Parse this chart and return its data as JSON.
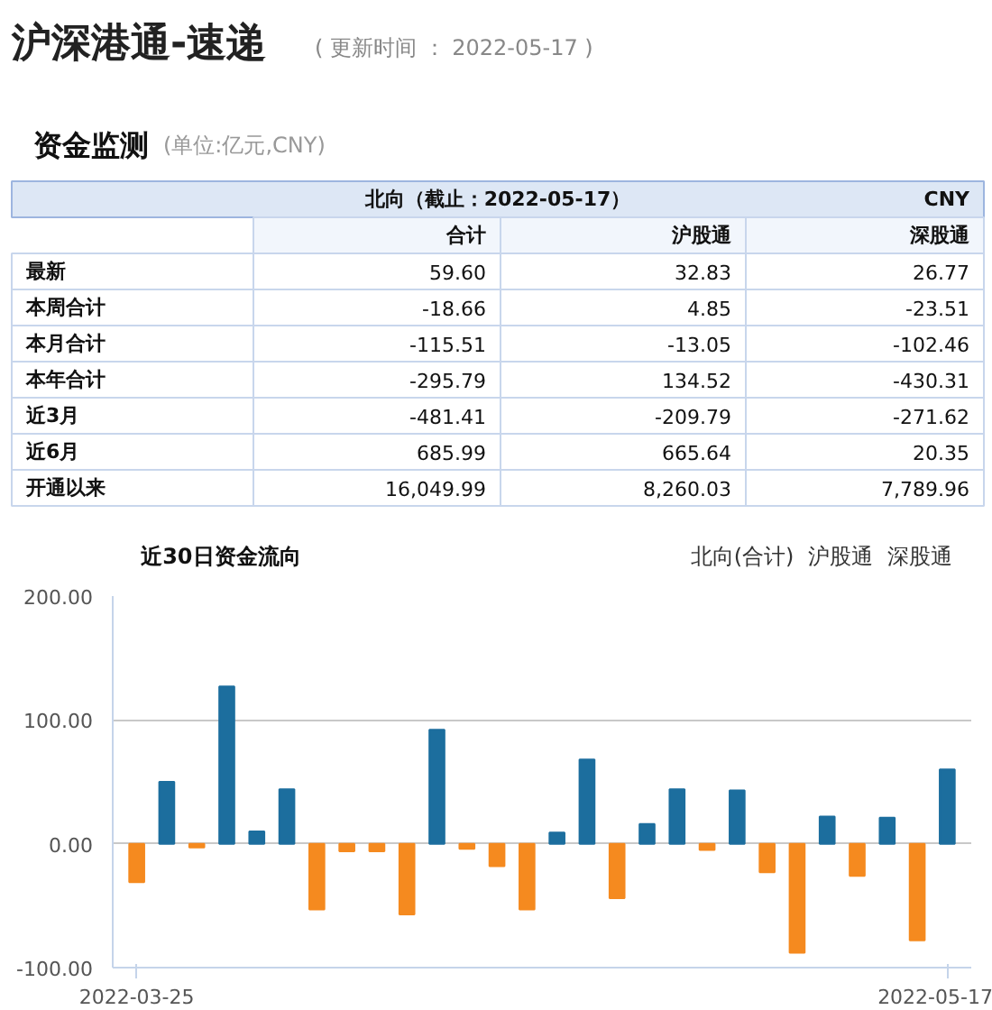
{
  "chart_data": [
    {
      "type": "other",
      "title": "沪深港通-速递",
      "subtitle": "( 更新时间 ： 2022-05-17 )"
    },
    {
      "type": "other",
      "title": "资金监测",
      "subtitle": "(单位:亿元,CNY)",
      "annotations": [
        "北向（截止：2022-05-17）",
        "CNY",
        "合计",
        "沪股通",
        "深股通",
        "最新",
        "59.60",
        "32.83",
        "26.77",
        "本周合计",
        "-18.66",
        "4.85",
        "-23.51",
        "本月合计",
        "-115.51",
        "-13.05",
        "-102.46",
        "本年合计",
        "-295.79",
        "134.52",
        "-430.31",
        "近3月",
        "-481.41",
        "-209.79",
        "-271.62",
        "近6月",
        "685.99",
        "665.64",
        "20.35",
        "开通以来",
        "16,049.99",
        "8,260.03",
        "7,789.96"
      ]
    },
    {
      "type": "bar",
      "title": "近30日资金流向",
      "annotations": [
        "北向(合计)",
        "沪股通",
        "深股通"
      ],
      "categories": [
        "2022-03-25",
        null,
        null,
        null,
        null,
        null,
        null,
        null,
        null,
        null,
        null,
        null,
        null,
        null,
        null,
        null,
        null,
        null,
        null,
        null,
        null,
        null,
        null,
        null,
        null,
        null,
        null,
        "2022-05-17"
      ],
      "values": [
        -31,
        50,
        -3,
        127,
        10,
        44,
        -53,
        -6,
        -6,
        -57,
        92,
        -4,
        -18,
        -53,
        9,
        68,
        -44,
        16,
        44,
        -5,
        43,
        -23,
        -88,
        22,
        -26,
        21,
        -78,
        60
      ],
      "colors": [
        "#f58a1f",
        "#1c6e9e",
        "#f58a1f",
        "#1c6e9e",
        "#1c6e9e",
        "#1c6e9e",
        "#f58a1f",
        "#f58a1f",
        "#f58a1f",
        "#f58a1f",
        "#1c6e9e",
        "#f58a1f",
        "#f58a1f",
        "#f58a1f",
        "#1c6e9e",
        "#1c6e9e",
        "#f58a1f",
        "#1c6e9e",
        "#1c6e9e",
        "#f58a1f",
        "#1c6e9e",
        "#f58a1f",
        "#f58a1f",
        "#1c6e9e",
        "#f58a1f",
        "#1c6e9e",
        "#f58a1f",
        "#1c6e9e"
      ],
      "ylim": [
        -100,
        200
      ],
      "yticks": [
        {
          "value": -100,
          "label": "-100.00"
        },
        {
          "value": 0,
          "label": "0.00"
        },
        {
          "value": 100,
          "label": "100.00"
        },
        {
          "value": 200,
          "label": "200.00"
        }
      ],
      "grid": "y"
    }
  ]
}
